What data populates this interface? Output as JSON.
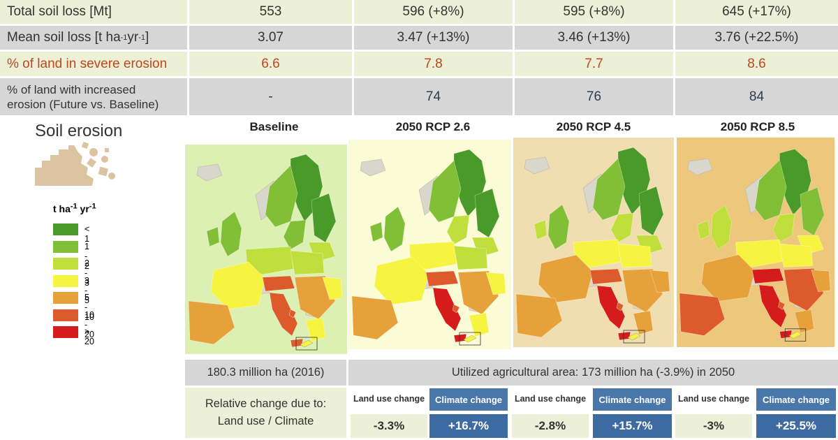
{
  "stats_table": {
    "rows": [
      {
        "label": "Total soil loss [Mt]",
        "values": [
          "553",
          "596 (+8%)",
          "595 (+8%)",
          "645 (+17%)"
        ]
      },
      {
        "label_parts": {
          "main": "Mean soil loss [t ha",
          "sup1": "-1",
          "mid": " yr",
          "sup2": "-1",
          "end": "]"
        },
        "values": [
          "3.07",
          "3.47 (+13%)",
          "3.46 (+13%)",
          "3.76 (+22.5%)"
        ]
      },
      {
        "label": "% of land in severe erosion",
        "values": [
          "6.6",
          "7.8",
          "7.7",
          "8.6"
        ]
      },
      {
        "label_line1": "% of land with increased",
        "label_line2": "erosion (Future vs. Baseline)",
        "values": [
          "-",
          "74",
          "76",
          "84"
        ]
      }
    ]
  },
  "left_panel": {
    "title": "Soil erosion",
    "legend_unit": {
      "main": "t ha",
      "sup1": "-1",
      "mid": " yr",
      "sup2": "-1"
    },
    "legend": [
      {
        "label": "< 1",
        "color": "#4a9a2a"
      },
      {
        "label": "1 - 2",
        "color": "#80bf36"
      },
      {
        "label": "2 - 3",
        "color": "#c1df3c"
      },
      {
        "label": "3 - 5",
        "color": "#f7f441"
      },
      {
        "label": "5 - 10",
        "color": "#e6a13a"
      },
      {
        "label": "10 - 20",
        "color": "#dc5a2c"
      },
      {
        "label": ">  20",
        "color": "#d51c1c"
      }
    ]
  },
  "maps": [
    {
      "title": "Baseline",
      "background": "#dcf0b4"
    },
    {
      "title": "2050 RCP 2.6",
      "background": "#fbfbd6"
    },
    {
      "title": "2050 RCP 4.5",
      "background": "#f1deb0"
    },
    {
      "title": "2050 RCP 8.5",
      "background": "#edc77c"
    }
  ],
  "bottom": {
    "area_2016": "180.3 million ha (2016)",
    "area_2050": "Utilized agricultural area: 173 million ha (-3.9%) in 2050",
    "relative_line1": "Relative change due to:",
    "relative_line2": "Land use / Climate",
    "land_use_label": "Land use change",
    "climate_label": "Climate change",
    "scenarios": [
      {
        "land_use": "-3.3%",
        "climate": "+16.7%"
      },
      {
        "land_use": "-2.8%",
        "climate": "+15.7%"
      },
      {
        "land_use": "-3%",
        "climate": "+25.5%"
      }
    ]
  },
  "chart_data": {
    "type": "table",
    "title": "Soil erosion",
    "columns": [
      "Baseline",
      "2050 RCP 2.6",
      "2050 RCP 4.5",
      "2050 RCP 8.5"
    ],
    "total_soil_loss_mt": [
      553,
      596,
      595,
      645
    ],
    "total_soil_loss_change_pct": [
      null,
      8,
      8,
      17
    ],
    "mean_soil_loss_t_ha_yr": [
      3.07,
      3.47,
      3.46,
      3.76
    ],
    "mean_soil_loss_change_pct": [
      null,
      13,
      13,
      22.5
    ],
    "pct_land_severe_erosion": [
      6.6,
      7.8,
      7.7,
      8.6
    ],
    "pct_land_increased_erosion": [
      null,
      74,
      76,
      84
    ],
    "relative_change_land_use_pct": [
      null,
      -3.3,
      -2.8,
      -3
    ],
    "relative_change_climate_pct": [
      null,
      16.7,
      15.7,
      25.5
    ],
    "legend_classes_t_ha_yr": [
      "< 1",
      "1 - 2",
      "2 - 3",
      "3 - 5",
      "5 - 10",
      "10 - 20",
      ">  20"
    ]
  }
}
